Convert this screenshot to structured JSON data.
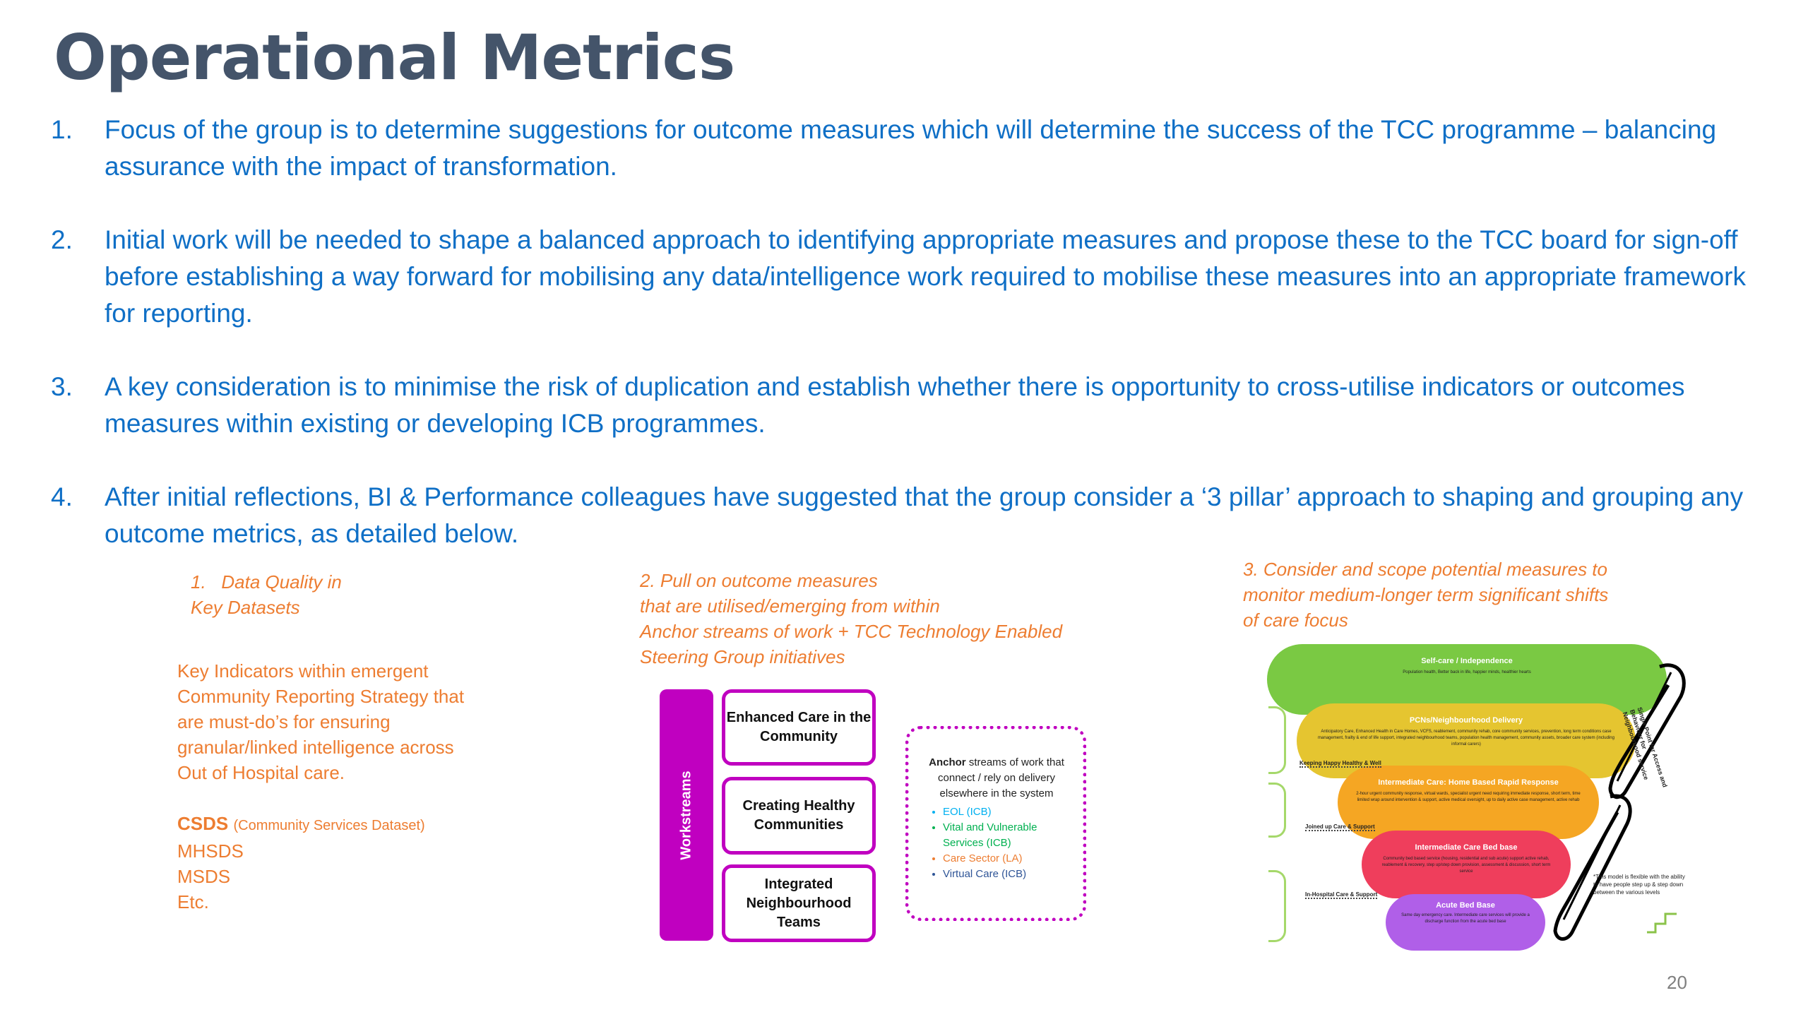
{
  "title": "Operational Metrics",
  "points": [
    {
      "num": "1.",
      "text": "Focus of the group is to determine suggestions for outcome measures which will determine the success of the TCC programme – balancing assurance with the impact of transformation."
    },
    {
      "num": "2.",
      "text": "Initial work will be needed to shape a balanced approach to identifying appropriate measures and propose these to the TCC board for sign-off before establishing a way forward for mobilising any data/intelligence work required to mobilise these measures into an appropriate framework for reporting."
    },
    {
      "num": "3.",
      "text": "A key consideration is to minimise the risk of duplication and establish whether there is opportunity to cross-utilise indicators or outcomes measures within existing or developing ICB programmes."
    },
    {
      "num": "4.",
      "text": "After initial reflections, BI & Performance colleagues have suggested that the group consider a ‘3 pillar’ approach to shaping and grouping any outcome metrics, as detailed below."
    }
  ],
  "pillar1": {
    "heading_num": "1.",
    "heading_l1": "Data Quality in",
    "heading_l2": "Key Datasets",
    "body_l1": "Key Indicators within emergent",
    "body_l2": "Community Reporting Strategy that",
    "body_l3": "are must-do’s for ensuring",
    "body_l4": "granular/linked intelligence across",
    "body_l5": "Out of Hospital care.",
    "csds": "CSDS",
    "csds_note": "(Community Services Dataset)",
    "items": [
      "MHSDS",
      "MSDS",
      "Etc."
    ]
  },
  "pillar2": {
    "heading_l1": "2. Pull on outcome measures",
    "heading_l2": "that are utilised/emerging from within",
    "heading_l3": "Anchor streams of work + TCC Technology Enabled",
    "heading_l4": "Steering Group initiatives",
    "workstreams_label": "Workstreams",
    "boxes": [
      "Enhanced Care in the Community",
      "Creating Healthy Communities",
      "Integrated Neighbourhood Teams"
    ],
    "anchor_bold": "Anchor",
    "anchor_rest": "streams of work that connect / rely on delivery elsewhere in the system",
    "anchor_items": [
      {
        "text": "EOL (ICB)",
        "color": "#00b0f0"
      },
      {
        "text": "Vital and Vulnerable Services (ICB)",
        "color": "#00b050"
      },
      {
        "text": "Care Sector (LA)",
        "color": "#ed7d31"
      },
      {
        "text": "Virtual Care (ICB)",
        "color": "#2f5597"
      }
    ]
  },
  "pillar3": {
    "heading_l1": "3. Consider and scope potential  measures to",
    "heading_l2": "monitor medium-longer term significant shifts",
    "heading_l3": "of care focus",
    "tiers": [
      {
        "title": "Self-care / Independence",
        "desc": "Population health, Better back in life, happier minds, healthier hearts",
        "color": "#7ac943"
      },
      {
        "title": "PCNs/Neighbourhood Delivery",
        "desc": "Anticipatory Care, Enhanced Health in Care Homes, VCFS, reablement, community rehab, core community services, prevention, long term conditions case management, frailty & end of life support, integrated neighbourhood teams, population health management, community assets, broader care system (including informal carers)",
        "color": "#e5c530"
      },
      {
        "title": "Intermediate Care: Home Based Rapid Response",
        "desc": "2-hour urgent community response, virtual wards, specialist urgent need requiring immediate response, short term, time limited wrap around intervention & support, active medical oversight, up to daily active case management, active rehab",
        "color": "#f5a623"
      },
      {
        "title": "Intermediate Care Bed base",
        "desc": "Community bed based service (housing, residential and sub acute) support active rehab, reablement & recovery, step up/step down provision, assessment & discussion, short term service",
        "color": "#ef3e5c"
      },
      {
        "title": "Acute Bed Base",
        "desc": "Same day emergency care. Intermediate care services will provide a discharge function from the acute bed base",
        "color": "#b05fe8"
      }
    ],
    "side_labels": [
      "Keeping Happy Healthy & Well",
      "Joined up Care & Support",
      "In-Hospital Care & Support"
    ],
    "right_note": "Single Point for Access and Behaviour for Neighbourhood service",
    "flex_note": "*This model is flexible with the ability to have people step up & step down between the various levels"
  },
  "page_number": "20"
}
